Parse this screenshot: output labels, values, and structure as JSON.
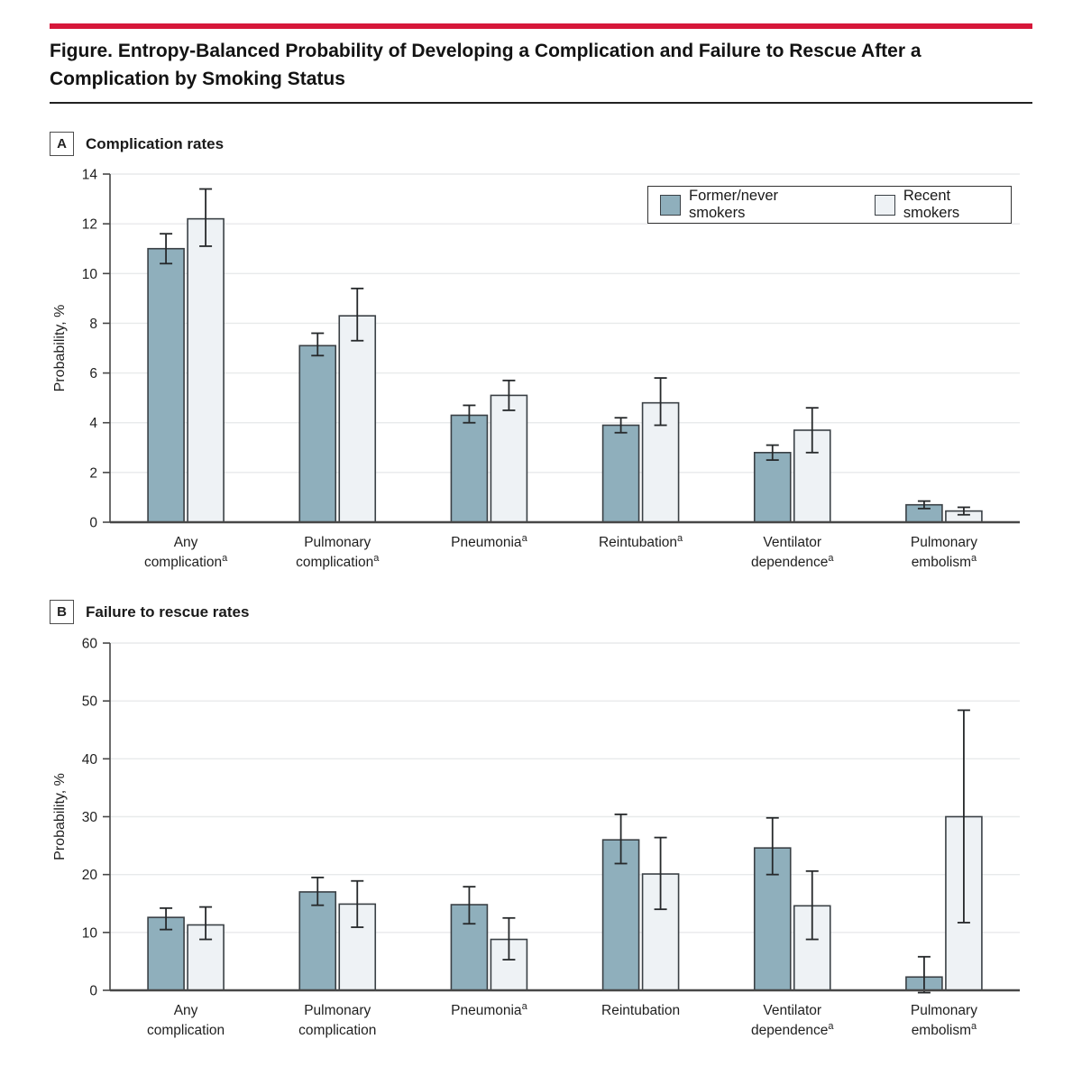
{
  "figure": {
    "title": "Figure. Entropy-Balanced Probability of Developing a Complication and Failure to Rescue After a Complication by Smoking Status",
    "accent_color": "#D6173A"
  },
  "legend": {
    "items": [
      {
        "label": "Former/never smokers",
        "color": "#8FAFBC"
      },
      {
        "label": "Recent smokers",
        "color": "#EEF2F5"
      }
    ]
  },
  "panels": [
    {
      "key": "A",
      "title": "Complication rates"
    },
    {
      "key": "B",
      "title": "Failure to rescue rates"
    }
  ],
  "chart_data": [
    {
      "type": "bar",
      "panel": "A",
      "title": "Complication rates",
      "ylabel": "Probability, %",
      "ylim": [
        0,
        14
      ],
      "yticks": [
        0,
        2,
        4,
        6,
        8,
        10,
        12,
        14
      ],
      "grid": true,
      "legend_position": "top-right",
      "error_bars": "95% CI",
      "categories": [
        {
          "lines": [
            {
              "text": "Any"
            },
            {
              "text": "complication",
              "sup": "a"
            }
          ]
        },
        {
          "lines": [
            {
              "text": "Pulmonary"
            },
            {
              "text": "complication",
              "sup": "a"
            }
          ]
        },
        {
          "lines": [
            {
              "text": "Pneumonia",
              "sup": "a"
            }
          ]
        },
        {
          "lines": [
            {
              "text": "Reintubation",
              "sup": "a"
            }
          ]
        },
        {
          "lines": [
            {
              "text": "Ventilator"
            },
            {
              "text": "dependence",
              "sup": "a"
            }
          ]
        },
        {
          "lines": [
            {
              "text": "Pulmonary"
            },
            {
              "text": "embolism",
              "sup": "a"
            }
          ]
        }
      ],
      "series": [
        {
          "name": "Former/never smokers",
          "color": "#8FAFBC",
          "values": [
            11.0,
            7.1,
            4.3,
            3.9,
            2.8,
            0.7
          ],
          "ci_low": [
            10.4,
            6.7,
            4.0,
            3.6,
            2.5,
            0.55
          ],
          "ci_high": [
            11.6,
            7.6,
            4.7,
            4.2,
            3.1,
            0.85
          ]
        },
        {
          "name": "Recent smokers",
          "color": "#EEF2F5",
          "values": [
            12.2,
            8.3,
            5.1,
            4.8,
            3.7,
            0.45
          ],
          "ci_low": [
            11.1,
            7.3,
            4.5,
            3.9,
            2.8,
            0.3
          ],
          "ci_high": [
            13.4,
            9.4,
            5.7,
            5.8,
            4.6,
            0.6
          ]
        }
      ]
    },
    {
      "type": "bar",
      "panel": "B",
      "title": "Failure to rescue rates",
      "ylabel": "Probability, %",
      "ylim": [
        0,
        60
      ],
      "yticks": [
        0,
        10,
        20,
        30,
        40,
        50,
        60
      ],
      "grid": true,
      "legend_position": "none",
      "error_bars": "95% CI",
      "categories": [
        {
          "lines": [
            {
              "text": "Any"
            },
            {
              "text": "complication"
            }
          ]
        },
        {
          "lines": [
            {
              "text": "Pulmonary"
            },
            {
              "text": "complication"
            }
          ]
        },
        {
          "lines": [
            {
              "text": "Pneumonia",
              "sup": "a"
            }
          ]
        },
        {
          "lines": [
            {
              "text": "Reintubation"
            }
          ]
        },
        {
          "lines": [
            {
              "text": "Ventilator"
            },
            {
              "text": "dependence",
              "sup": "a"
            }
          ]
        },
        {
          "lines": [
            {
              "text": "Pulmonary"
            },
            {
              "text": "embolism",
              "sup": "a"
            }
          ]
        }
      ],
      "series": [
        {
          "name": "Former/never smokers",
          "color": "#8FAFBC",
          "values": [
            12.6,
            17.0,
            14.8,
            26.0,
            24.6,
            2.3
          ],
          "ci_low": [
            10.5,
            14.7,
            11.5,
            21.9,
            20.0,
            -0.4
          ],
          "ci_high": [
            14.2,
            19.5,
            17.9,
            30.4,
            29.8,
            5.8
          ]
        },
        {
          "name": "Recent smokers",
          "color": "#EEF2F5",
          "values": [
            11.3,
            14.9,
            8.8,
            20.1,
            14.6,
            30.0
          ],
          "ci_low": [
            8.8,
            10.9,
            5.3,
            14.0,
            8.8,
            11.7
          ],
          "ci_high": [
            14.4,
            18.9,
            12.5,
            26.4,
            20.6,
            48.4
          ]
        }
      ]
    }
  ]
}
